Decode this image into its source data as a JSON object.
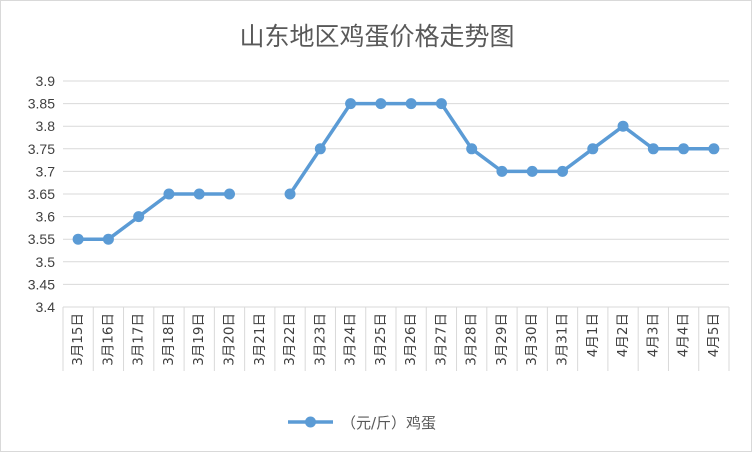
{
  "chart_data": {
    "type": "line",
    "title": "山东地区鸡蛋价格走势图",
    "xlabel": "",
    "ylabel": "",
    "categories": [
      "3月15日",
      "3月16日",
      "3月17日",
      "3月18日",
      "3月19日",
      "3月20日",
      "3月21日",
      "3月22日",
      "3月23日",
      "3月24日",
      "3月25日",
      "3月26日",
      "3月27日",
      "3月28日",
      "3月29日",
      "3月30日",
      "3月31日",
      "4月1日",
      "4月2日",
      "4月3日",
      "4月4日",
      "4月5日"
    ],
    "series": [
      {
        "name": "（元/斤）鸡蛋",
        "color": "#5b9bd5",
        "values": [
          3.55,
          3.55,
          3.6,
          3.65,
          3.65,
          3.65,
          null,
          3.65,
          3.75,
          3.85,
          3.85,
          3.85,
          3.85,
          3.75,
          3.7,
          3.7,
          3.7,
          3.75,
          3.8,
          3.75,
          3.75,
          3.75
        ]
      }
    ],
    "ylim": [
      3.4,
      3.9
    ],
    "yticks": [
      "3.4",
      "3.45",
      "3.5",
      "3.55",
      "3.6",
      "3.65",
      "3.7",
      "3.75",
      "3.8",
      "3.85",
      "3.9"
    ],
    "grid": true,
    "legend_position": "bottom-center"
  }
}
